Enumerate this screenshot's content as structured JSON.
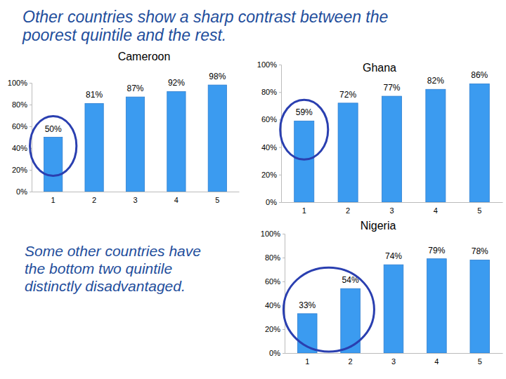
{
  "heading": "Other countries show a sharp contrast between the poorest quintile and the rest.",
  "caption": "Some other countries have the bottom two quintile distinctly disadvantaged.",
  "chart_data": [
    {
      "type": "bar",
      "title": "Cameroon",
      "categories": [
        "1",
        "2",
        "3",
        "4",
        "5"
      ],
      "values": [
        50,
        81,
        87,
        92,
        98
      ],
      "value_labels": [
        "50%",
        "81%",
        "87%",
        "92%",
        "98%"
      ],
      "data_labels": true,
      "color": "#3b9bf0",
      "grid": false,
      "ylim": [
        0,
        100
      ],
      "yticks": [
        {
          "value": 0,
          "label": "0%"
        },
        {
          "value": 20,
          "label": "20%"
        },
        {
          "value": 40,
          "label": "40%"
        },
        {
          "value": 60,
          "label": "60%"
        },
        {
          "value": 80,
          "label": "80%"
        },
        {
          "value": 100,
          "label": "100%"
        }
      ]
    },
    {
      "type": "bar",
      "title": "Ghana",
      "categories": [
        "1",
        "2",
        "3",
        "4",
        "5"
      ],
      "values": [
        59,
        72,
        77,
        82,
        86
      ],
      "value_labels": [
        "59%",
        "72%",
        "77%",
        "82%",
        "86%"
      ],
      "data_labels": true,
      "color": "#3b9bf0",
      "grid": false,
      "ylim": [
        0,
        100
      ],
      "yticks": [
        {
          "value": 0,
          "label": "0%"
        },
        {
          "value": 20,
          "label": "20%"
        },
        {
          "value": 40,
          "label": "40%"
        },
        {
          "value": 60,
          "label": "60%"
        },
        {
          "value": 80,
          "label": "80%"
        },
        {
          "value": 100,
          "label": "100%"
        }
      ]
    },
    {
      "type": "bar",
      "title": "Nigeria",
      "categories": [
        "1",
        "2",
        "3",
        "4",
        "5"
      ],
      "values": [
        33,
        54,
        74,
        79,
        78
      ],
      "value_labels": [
        "33%",
        "54%",
        "74%",
        "79%",
        "78%"
      ],
      "data_labels": true,
      "color": "#3b9bf0",
      "grid": false,
      "ylim": [
        0,
        100
      ],
      "yticks": [
        {
          "value": 0,
          "label": "0%"
        },
        {
          "value": 20,
          "label": "20%"
        },
        {
          "value": 40,
          "label": "40%"
        },
        {
          "value": 60,
          "label": "60%"
        },
        {
          "value": 80,
          "label": "80%"
        },
        {
          "value": 100,
          "label": "100%"
        }
      ]
    }
  ]
}
